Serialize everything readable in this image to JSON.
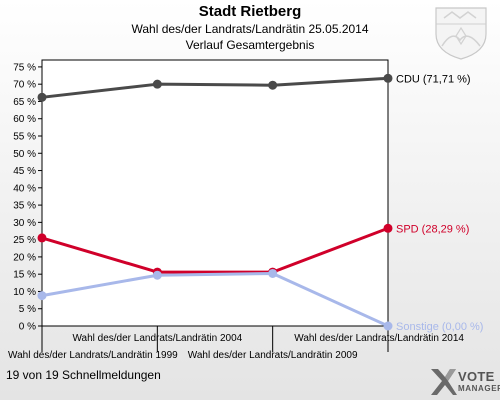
{
  "header": {
    "title": "Stadt Rietberg",
    "subtitle": "Wahl des/der Landrats/Landrätin 25.05.2014",
    "subtitle2": "Verlauf Gesamtergebnis"
  },
  "footer": {
    "status": "19 von 19 Schnellmeldungen"
  },
  "logo": {
    "line1": "VOTE",
    "line2": "MANAGER"
  },
  "chart_data": {
    "type": "line",
    "title": "Stadt Rietberg",
    "categories": [
      "Wahl des/der Landrats/Landrätin 1999",
      "Wahl des/der Landrats/Landrätin 2004",
      "Wahl des/der Landrats/Landrätin 2009",
      "Wahl des/der Landrats/Landrätin 2014"
    ],
    "yticks": [
      "0 %",
      "5 %",
      "10 %",
      "15 %",
      "20 %",
      "25 %",
      "30 %",
      "35 %",
      "40 %",
      "45 %",
      "50 %",
      "55 %",
      "60 %",
      "65 %",
      "70 %",
      "75 %"
    ],
    "ylim": [
      0,
      77
    ],
    "series": [
      {
        "name": "CDU",
        "label": "CDU (71,71 %)",
        "color": "#4a4a4a",
        "labelColor": "#000000",
        "values": [
          66.2,
          70.0,
          69.7,
          71.71
        ]
      },
      {
        "name": "SPD",
        "label": "SPD (28,29 %)",
        "color": "#d0002a",
        "labelColor": "#d0002a",
        "values": [
          25.5,
          15.6,
          15.6,
          28.29
        ]
      },
      {
        "name": "Sonstige",
        "label": "Sonstige (0,00 %)",
        "color": "#a8b8ea",
        "labelColor": "#a8b8ea",
        "values": [
          8.8,
          14.7,
          15.2,
          0.0
        ]
      }
    ],
    "grid": false,
    "legend": "end-of-line labels"
  }
}
